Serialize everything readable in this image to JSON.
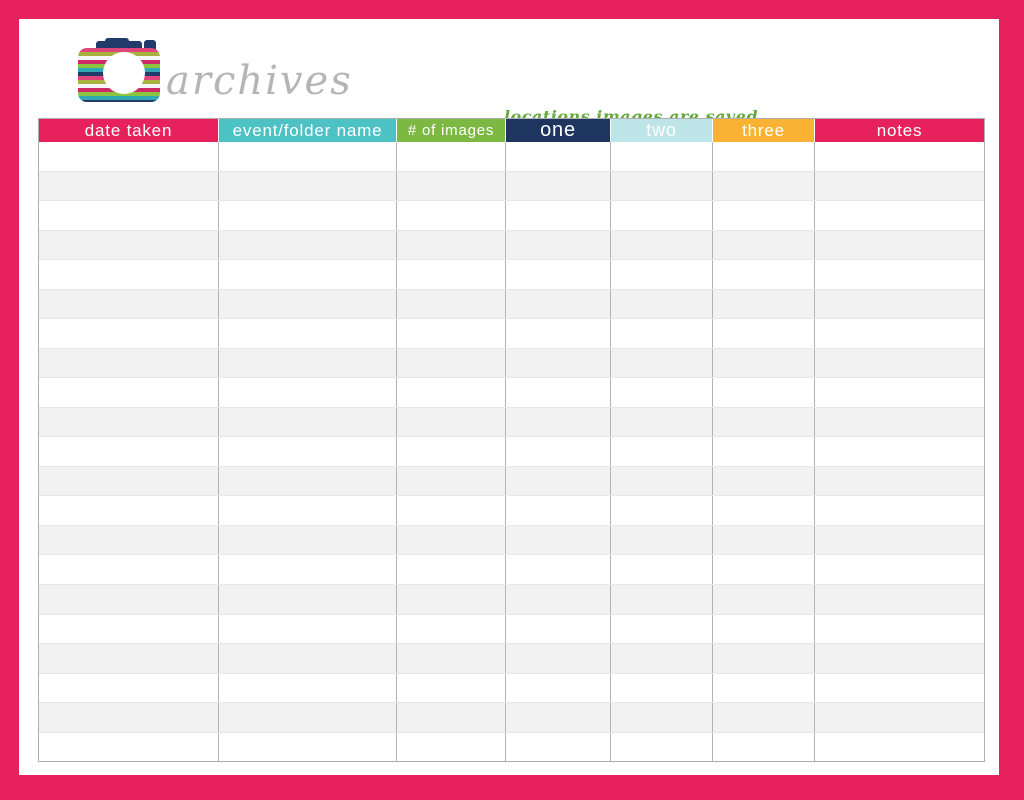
{
  "frame_color": "#e6215c",
  "logo": {
    "title": "archives",
    "title_color": "#b5b5b5",
    "camera_navy": "#223b6b",
    "stripe_colors": [
      "#e0457b",
      "#a9b23e",
      "#f6f6f6",
      "#ce2a67",
      "#8bc540",
      "#2faab4",
      "#223b6b"
    ]
  },
  "annotation": {
    "text": "locations images are saved",
    "color": "#64a83c"
  },
  "table": {
    "columns": [
      {
        "id": "date-taken",
        "label": "date taken",
        "color": "#e6215c",
        "text_color": "#ffffff",
        "width": 180
      },
      {
        "id": "event-folder-name",
        "label": "event/folder name",
        "color": "#4dc2c4",
        "text_color": "#ffffff",
        "width": 178
      },
      {
        "id": "num-images",
        "label": "# of images",
        "color": "#7cb842",
        "text_color": "#ffffff",
        "width": 109
      },
      {
        "id": "one",
        "label": "one",
        "color": "#1e3560",
        "text_color": "#ffffff",
        "width": 105
      },
      {
        "id": "two",
        "label": "two",
        "color": "#bde4e7",
        "text_color": "#ffffff",
        "width": 102
      },
      {
        "id": "three",
        "label": "three",
        "color": "#f9b233",
        "text_color": "#ffffff",
        "width": 102
      },
      {
        "id": "notes",
        "label": "notes",
        "color": "#e6215c",
        "text_color": "#ffffff",
        "width": 171
      }
    ],
    "row_count": 21,
    "cell_text": "",
    "row_colors": {
      "odd": "#ffffff",
      "even": "#f3f2f3"
    },
    "grid_colors": {
      "vertical": "#b3b3b3",
      "horizontal": "#e8e7e8",
      "outer": "#afafaf"
    }
  }
}
